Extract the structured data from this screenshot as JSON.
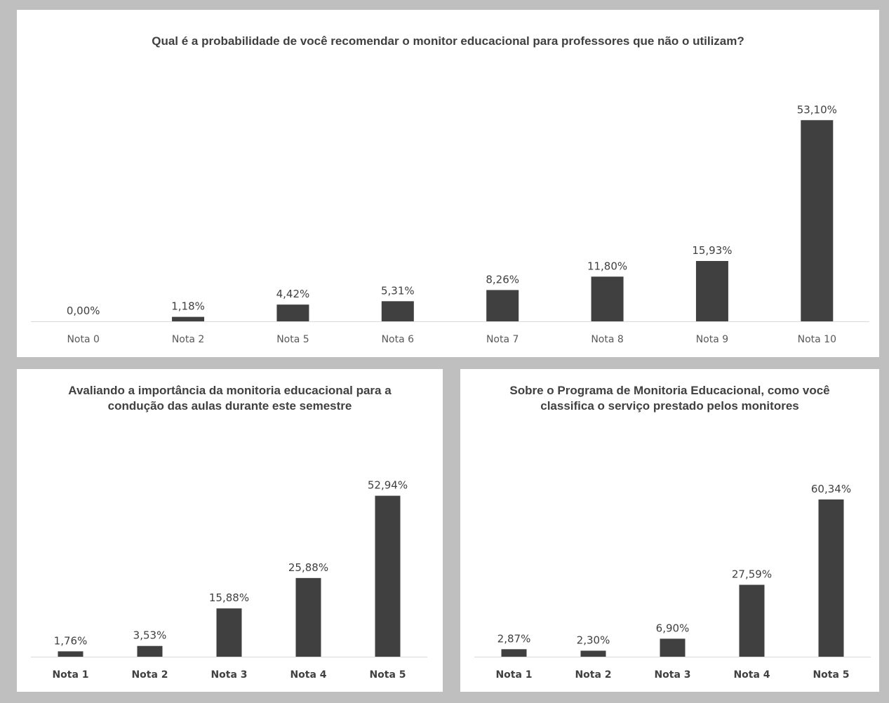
{
  "chart_data": [
    {
      "type": "bar",
      "title": "Qual é a probabilidade de você recomendar o monitor educacional para professores que não o utilizam?",
      "categories": [
        "Nota 0",
        "Nota 2",
        "Nota 5",
        "Nota 6",
        "Nota 7",
        "Nota 8",
        "Nota 9",
        "Nota 10"
      ],
      "values": [
        0.0,
        1.18,
        4.42,
        5.31,
        8.26,
        11.8,
        15.93,
        53.1
      ],
      "value_labels": [
        "0,00%",
        "1,18%",
        "4,42%",
        "5,31%",
        "8,26%",
        "11,80%",
        "15,93%",
        "53,10%"
      ],
      "xlabel": "",
      "ylabel": "",
      "ylim": [
        0,
        60
      ],
      "grid": false,
      "bar_color": "#404040"
    },
    {
      "type": "bar",
      "title": "Avaliando a importância da monitoria educacional para a condução das aulas durante este semestre",
      "categories": [
        "Nota 1",
        "Nota 2",
        "Nota 3",
        "Nota 4",
        "Nota 5"
      ],
      "values": [
        1.76,
        3.53,
        15.88,
        25.88,
        52.94
      ],
      "value_labels": [
        "1,76%",
        "3,53%",
        "15,88%",
        "25,88%",
        "52,94%"
      ],
      "xlabel": "",
      "ylabel": "",
      "ylim": [
        0,
        60
      ],
      "grid": false,
      "bar_color": "#404040"
    },
    {
      "type": "bar",
      "title": "Sobre o Programa de Monitoria Educacional, como você classifica o serviço prestado pelos monitores",
      "categories": [
        "Nota 1",
        "Nota 2",
        "Nota 3",
        "Nota 4",
        "Nota 5"
      ],
      "values": [
        2.87,
        2.3,
        6.9,
        27.59,
        60.34
      ],
      "value_labels": [
        "2,87%",
        "2,30%",
        "6,90%",
        "27,59%",
        "60,34%"
      ],
      "xlabel": "",
      "ylabel": "",
      "ylim": [
        0,
        70
      ],
      "grid": false,
      "bar_color": "#404040"
    }
  ]
}
